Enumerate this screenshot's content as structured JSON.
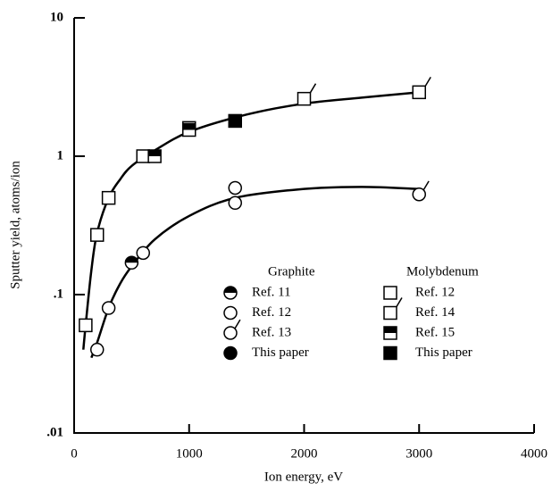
{
  "chart_data": {
    "type": "scatter",
    "xlabel": "Ion energy, eV",
    "ylabel": "Sputter yield, atoms/ion",
    "xlim": [
      0,
      4000
    ],
    "ylim": [
      0.01,
      10
    ],
    "ylog": true,
    "xticks": [
      0,
      1000,
      2000,
      3000,
      4000
    ],
    "yticks": [
      {
        "value": 0.01,
        "label": ".01"
      },
      {
        "value": 0.1,
        "label": ".1"
      },
      1,
      10
    ],
    "legend_groups": [
      "Graphite",
      "Molybdenum"
    ],
    "series": [
      {
        "name": "Ref. 11",
        "group": 0,
        "marker": "half-circle",
        "x": [
          500
        ],
        "values": [
          0.17
        ]
      },
      {
        "name": "Ref. 12",
        "group": 0,
        "marker": "circle",
        "x": [
          200,
          300,
          600,
          1400,
          1400
        ],
        "values": [
          0.04,
          0.08,
          0.2,
          0.59,
          0.46
        ]
      },
      {
        "name": "Ref. 13",
        "group": 0,
        "marker": "circle-tick",
        "x": [
          3000
        ],
        "values": [
          0.53
        ]
      },
      {
        "name": "This paper",
        "group": 0,
        "marker": "filled-circle",
        "x": [],
        "values": []
      },
      {
        "name": "Ref. 12",
        "group": 1,
        "marker": "square",
        "x": [
          100,
          200,
          300,
          600,
          1000
        ],
        "values": [
          0.06,
          0.27,
          0.5,
          1.0,
          1.6
        ]
      },
      {
        "name": "Ref. 14",
        "group": 1,
        "marker": "square-tick",
        "x": [
          2000,
          3000
        ],
        "values": [
          2.6,
          2.9
        ]
      },
      {
        "name": "Ref. 15",
        "group": 1,
        "marker": "half-square",
        "x": [
          700,
          1000
        ],
        "values": [
          1.0,
          1.55
        ]
      },
      {
        "name": "This paper",
        "group": 1,
        "marker": "filled-square",
        "x": [
          1400
        ],
        "values": [
          1.8
        ]
      }
    ],
    "curves": [
      {
        "x": [
          80,
          100,
          150,
          200,
          300,
          400,
          500,
          700,
          1000,
          1500,
          2000,
          2500,
          3000
        ],
        "values": [
          0.04,
          0.06,
          0.15,
          0.28,
          0.5,
          0.68,
          0.85,
          1.1,
          1.5,
          2.0,
          2.4,
          2.65,
          2.9
        ]
      },
      {
        "x": [
          150,
          200,
          300,
          400,
          500,
          700,
          1000,
          1400,
          2000,
          2500,
          3000
        ],
        "values": [
          0.035,
          0.045,
          0.08,
          0.12,
          0.16,
          0.25,
          0.37,
          0.5,
          0.58,
          0.6,
          0.58
        ]
      }
    ]
  }
}
